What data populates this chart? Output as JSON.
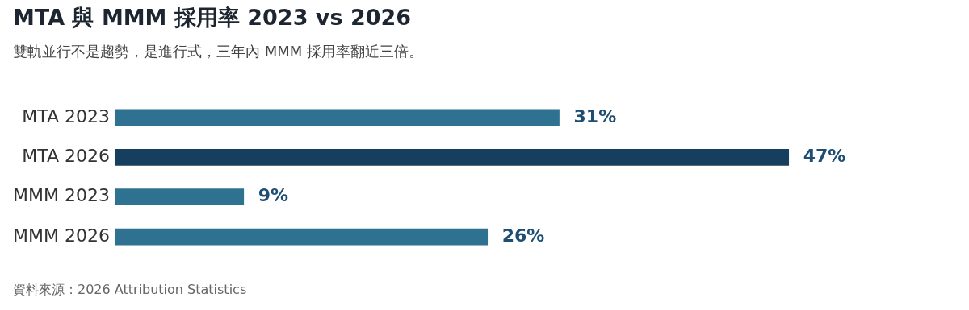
{
  "chart_data": {
    "type": "bar",
    "orientation": "horizontal",
    "title": "MTA 與 MMM 採用率 2023 vs 2026",
    "subtitle": "雙軌並行不是趨勢，是進行式，三年內 MMM 採用率翻近三倍。",
    "categories": [
      "MTA 2023",
      "MTA 2026",
      "MMM 2023",
      "MMM 2026"
    ],
    "values": [
      31,
      47,
      9,
      26
    ],
    "colors": [
      "#2e7191",
      "#163f5f",
      "#2e7191",
      "#2e7191"
    ],
    "value_labels": [
      "31%",
      "47%",
      "9%",
      "26%"
    ],
    "tick_labels": "y",
    "legend": false,
    "annotations": [
      "資料來源：2026 Attribution Statistics"
    ]
  }
}
